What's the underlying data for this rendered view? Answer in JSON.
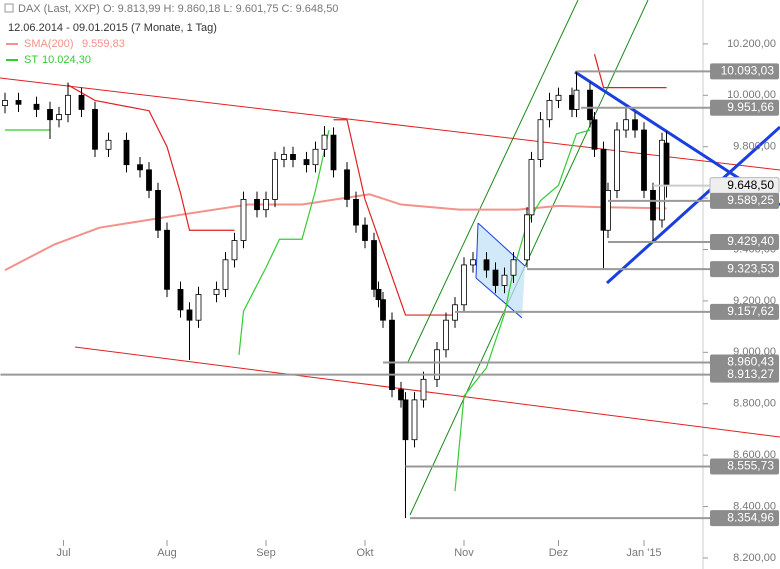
{
  "chart_data": {
    "type": "candlestick",
    "title": "DAX (Last, XXP)  O: 9.813,99  H: 9.860,18  L: 9.601,75  C: 9.648,50",
    "subtitle": "12.06.2014 - 09.01.2015 (7 Monate, 1 Tag)",
    "x": [
      0,
      3,
      7,
      10,
      12,
      14,
      17,
      20,
      23,
      27,
      30,
      32,
      34,
      36,
      39,
      41,
      43,
      47,
      49,
      51,
      53,
      56,
      58,
      60,
      62,
      64,
      67,
      69,
      71,
      73,
      76,
      78,
      80,
      82,
      83,
      84,
      86,
      88,
      89,
      91,
      93,
      96,
      98,
      100,
      102,
      104,
      107,
      109,
      111,
      113,
      116,
      117,
      119,
      121,
      123,
      126,
      127,
      130,
      131,
      133,
      134,
      136,
      138,
      140,
      142,
      144,
      146,
      147
    ],
    "open": [
      9960,
      9980,
      9965,
      9945,
      9905,
      9925,
      10000,
      9945,
      9790,
      9825,
      9730,
      9710,
      9630,
      9475,
      9245,
      9165,
      9125,
      9225,
      9245,
      9360,
      9435,
      9595,
      9555,
      9595,
      9750,
      9770,
      9750,
      9730,
      9790,
      9845,
      9710,
      9595,
      9495,
      9435,
      9245,
      9205,
      9125,
      8855,
      8815,
      8660,
      8815,
      8895,
      9010,
      9125,
      9185,
      9340,
      9360,
      9320,
      9260,
      9300,
      9360,
      9535,
      9750,
      9905,
      9980,
      10000,
      9945,
      10020,
      9905,
      9790,
      9475,
      9630,
      9865,
      9905,
      9865,
      9630,
      9515,
      9813.99
    ],
    "high": [
      10010,
      10010,
      9995,
      9975,
      9955,
      10050,
      10030,
      9975,
      9855,
      9855,
      9760,
      9740,
      9660,
      9505,
      9275,
      9195,
      9255,
      9275,
      9390,
      9465,
      9625,
      9625,
      9625,
      9780,
      9800,
      9800,
      9780,
      9820,
      9880,
      9875,
      9740,
      9625,
      9525,
      9465,
      9275,
      9235,
      9155,
      8885,
      8845,
      8845,
      8925,
      9040,
      9155,
      9215,
      9370,
      9390,
      9390,
      9350,
      9330,
      9390,
      9565,
      9780,
      9935,
      10010,
      10030,
      10030,
      10093,
      10050,
      9935,
      9820,
      9660,
      9895,
      9952,
      9935,
      9895,
      9660,
      9855,
      9860.18
    ],
    "low": [
      9930,
      9935,
      9915,
      9830,
      9875,
      9895,
      9915,
      9760,
      9760,
      9700,
      9680,
      9600,
      9445,
      9215,
      9135,
      8970,
      9095,
      9195,
      9215,
      9330,
      9405,
      9525,
      9525,
      9565,
      9720,
      9720,
      9700,
      9700,
      9760,
      9680,
      9565,
      9465,
      9405,
      9215,
      9175,
      9095,
      8825,
      8785,
      8355,
      8630,
      8785,
      8865,
      8980,
      9095,
      9155,
      9310,
      9290,
      9230,
      9230,
      9270,
      9330,
      9505,
      9720,
      9875,
      9950,
      9915,
      9915,
      9875,
      9760,
      9324,
      9445,
      9600,
      9835,
      9835,
      9600,
      9430,
      9485,
      9601.75
    ],
    "close": [
      9980,
      9965,
      9945,
      9905,
      9925,
      10000,
      9945,
      9790,
      9825,
      9730,
      9710,
      9630,
      9475,
      9245,
      9165,
      9125,
      9225,
      9245,
      9360,
      9435,
      9595,
      9555,
      9595,
      9750,
      9770,
      9750,
      9730,
      9790,
      9845,
      9710,
      9595,
      9495,
      9435,
      9245,
      9205,
      9125,
      8855,
      8815,
      8660,
      8815,
      8895,
      9010,
      9125,
      9185,
      9340,
      9360,
      9320,
      9260,
      9300,
      9360,
      9535,
      9750,
      9905,
      9980,
      10000,
      9945,
      10020,
      9905,
      9790,
      9475,
      9630,
      9865,
      9905,
      9865,
      9630,
      9515,
      9825,
      9648.5
    ],
    "color_up": "#ffffff",
    "color_down": "#000000",
    "series": [
      {
        "name": "SMA(200)",
        "legend_value": "9.559,83",
        "color": "#f4918a",
        "x": [
          0,
          11,
          21,
          39,
          54,
          66,
          81,
          88,
          101,
          114,
          123,
          132,
          147
        ],
        "values": [
          9320,
          9420,
          9485,
          9535,
          9575,
          9575,
          9615,
          9575,
          9555,
          9555,
          9570,
          9565,
          9560
        ]
      },
      {
        "name": "ST",
        "legend_value": "10.024,30",
        "color": "#33cc33",
        "x": [
          0,
          10,
          11,
          52,
          53,
          58,
          61,
          66,
          69,
          72,
          73,
          100,
          102,
          107,
          111,
          113,
          116,
          119,
          123,
          127,
          130
        ],
        "values": [
          9865,
          9865,
          null,
          8990,
          9160,
          9330,
          9440,
          9440,
          9630,
          9865,
          null,
          8460,
          8830,
          8940,
          9150,
          9320,
          9500,
          9590,
          9650,
          9850,
          9865
        ]
      },
      {
        "color": "#e02020",
        "x": [
          14,
          20,
          32,
          36,
          39,
          41,
          51,
          52,
          73,
          76,
          80,
          84,
          89,
          100,
          101,
          131,
          133,
          147
        ],
        "values": [
          10040,
          9980,
          9940,
          9800,
          9620,
          9475,
          9475,
          null,
          9905,
          9905,
          9595,
          9395,
          9145,
          9145,
          null,
          10160,
          10030,
          10030
        ]
      }
    ],
    "levels": [
      {
        "value": 10093.03,
        "label": "10.093,03",
        "x_start": 127
      },
      {
        "value": 9951.66,
        "label": "9.951,66",
        "x_start": 128
      },
      {
        "value": 9648.5,
        "label": "9.648,50",
        "x_start": 144,
        "current": true
      },
      {
        "value": 9589.25,
        "label": "9.589,25",
        "x_start": 134
      },
      {
        "value": 9429.4,
        "label": "9.429,40",
        "x_start": 134
      },
      {
        "value": 9323.53,
        "label": "9.323,53",
        "x_start": 116
      },
      {
        "value": 9157.62,
        "label": "9.157,62",
        "x_start": 100
      },
      {
        "value": 8960.43,
        "label": "8.960,43",
        "x_start": 84
      },
      {
        "value": 8913.27,
        "label": "8.913,27",
        "x_start": -1
      },
      {
        "value": 8555.73,
        "label": "8.555,73",
        "x_start": 89
      },
      {
        "value": 8354.96,
        "label": "8.354,96",
        "x_start": 90
      }
    ],
    "xlim": [
      -1,
      155
    ],
    "xticks": [
      {
        "value": 13,
        "label": "Jul"
      },
      {
        "value": 36,
        "label": "Aug"
      },
      {
        "value": 58,
        "label": "Sep"
      },
      {
        "value": 80,
        "label": "Okt"
      },
      {
        "value": 102,
        "label": "Nov"
      },
      {
        "value": 123,
        "label": "Dez"
      },
      {
        "value": 142,
        "label": "Jan '15"
      }
    ],
    "ylim": [
      8157,
      10363
    ],
    "yticks": [
      {
        "value": 8200,
        "label": "8.200,00"
      },
      {
        "value": 8400,
        "label": "8.400,00"
      },
      {
        "value": 8600,
        "label": "8.600,00"
      },
      {
        "value": 8800,
        "label": "8.800,00"
      },
      {
        "value": 9000,
        "label": "9.000,00"
      },
      {
        "value": 9200,
        "label": "9.200,00"
      },
      {
        "value": 9400,
        "label": "9.400,00"
      },
      {
        "value": 9600,
        "label": "9.600,00"
      },
      {
        "value": 9800,
        "label": "9.800,00"
      },
      {
        "value": 10000,
        "label": "10.000,00"
      },
      {
        "value": 10200,
        "label": "10.200,00"
      }
    ],
    "grid": false
  }
}
